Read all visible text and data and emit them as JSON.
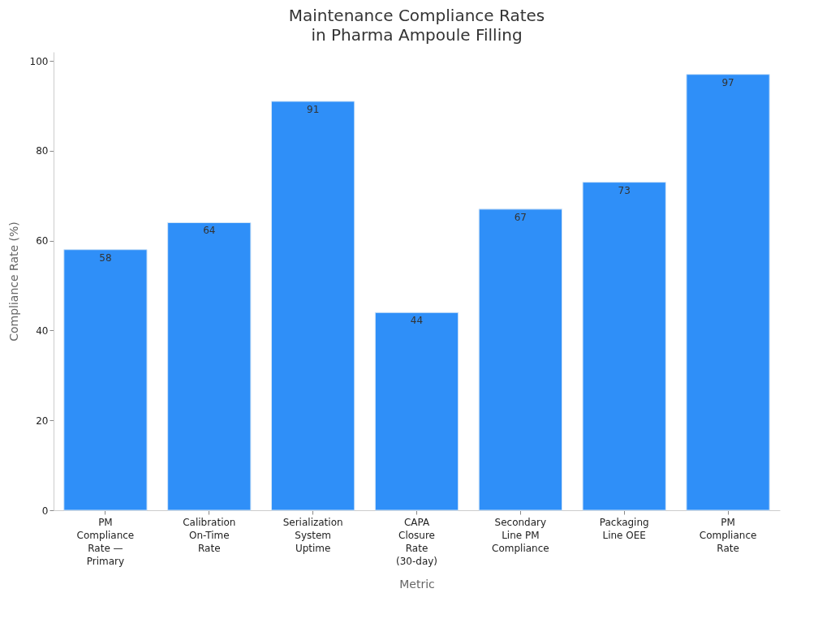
{
  "chart_data": {
    "type": "bar",
    "title": "Maintenance Compliance Rates in Pharma Ampoule Filling",
    "xlabel": "Metric",
    "ylabel": "Compliance Rate (%)",
    "categories": [
      "PM Compliance Rate — Primary",
      "Calibration On-Time Rate",
      "Serialization System Uptime",
      "CAPA Closure Rate (30-day)",
      "Secondary Line PM Compliance",
      "Packaging Line OEE",
      "PM Compliance Rate"
    ],
    "values": [
      58,
      64,
      91,
      44,
      67,
      73,
      97
    ],
    "color": "#2f8ff8",
    "ylim": [
      0,
      102
    ],
    "yticks": [
      0,
      20,
      40,
      60,
      80,
      100
    ],
    "grid": false,
    "data_labels": true
  }
}
